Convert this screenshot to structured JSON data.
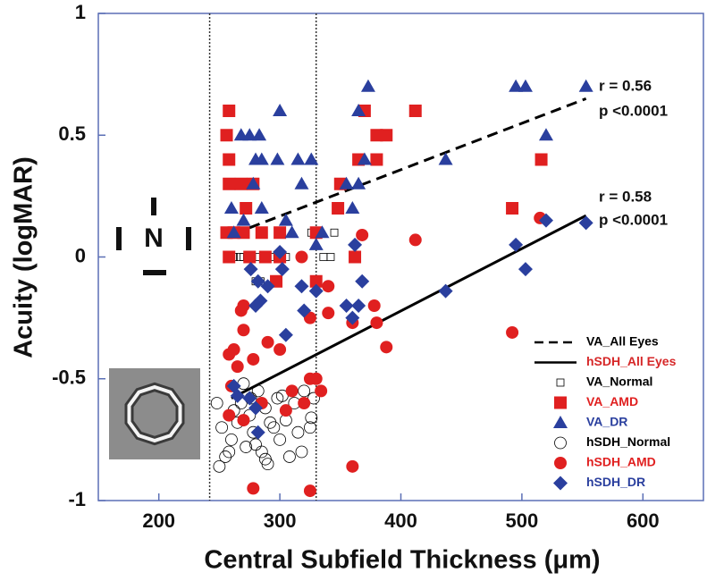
{
  "chart_data": {
    "type": "scatter",
    "x_label": "Central Subfield Thickness (μm)",
    "y_label": "Acuity (logMAR)",
    "xlim": [
      150,
      650
    ],
    "ylim": [
      -1,
      1
    ],
    "xticks": [
      200,
      300,
      400,
      500,
      600
    ],
    "yticks": [
      1,
      0.5,
      0,
      -0.5,
      -1
    ],
    "reference_lines_x": [
      242,
      330
    ],
    "orientation_label": "N",
    "annotations": [
      "r = 0.56",
      "p <0.0001",
      "r = 0.58",
      "p <0.0001"
    ],
    "series": [
      {
        "name": "VA_All Eyes",
        "color": "#000000",
        "marker": "line",
        "dash": true,
        "x": [
          275,
          553
        ],
        "values": [
          0.12,
          0.65
        ]
      },
      {
        "name": "hSDH_All Eyes",
        "color": "#d62728",
        "marker": "line",
        "dash": false,
        "line_color": "#000000",
        "x": [
          260,
          553
        ],
        "values": [
          -0.58,
          0.17
        ]
      },
      {
        "name": "VA_Normal",
        "color": "#000000",
        "marker": "square",
        "filled": false,
        "x": [
          262,
          267,
          270,
          273,
          277,
          282,
          287,
          292,
          300,
          305,
          318,
          336,
          342,
          280,
          284,
          326,
          345
        ],
        "values": [
          0,
          0,
          0,
          0,
          0,
          0,
          0,
          0,
          0,
          0,
          0,
          0,
          0,
          -0.1,
          -0.1,
          0.1,
          0.1
        ]
      },
      {
        "name": "VA_AMD",
        "color": "#e02020",
        "marker": "square",
        "filled": true,
        "x": [
          258,
          256,
          258,
          258,
          268,
          272,
          256,
          262,
          270,
          285,
          300,
          258,
          275,
          288,
          300,
          330,
          330,
          348,
          350,
          365,
          370,
          380,
          380,
          388,
          412,
          362,
          492,
          516,
          278,
          297
        ],
        "values": [
          0.6,
          0.5,
          0.4,
          0.3,
          0.3,
          0.2,
          0.1,
          0.1,
          0.1,
          0.1,
          0.1,
          0,
          0,
          0,
          0,
          0.1,
          -0.1,
          0.2,
          0.3,
          0.4,
          0.6,
          0.4,
          0.5,
          0.5,
          0.6,
          0,
          0.2,
          0.4,
          0.3,
          -0.1
        ]
      },
      {
        "name": "VA_DR",
        "color": "#2a3f9e",
        "marker": "triangle",
        "filled": true,
        "x": [
          260,
          262,
          268,
          275,
          280,
          283,
          278,
          285,
          300,
          298,
          310,
          315,
          318,
          326,
          335,
          355,
          360,
          365,
          370,
          365,
          373,
          437,
          495,
          503,
          520,
          553,
          330,
          270,
          285,
          305
        ],
        "values": [
          0.2,
          0.1,
          0.5,
          0.5,
          0.4,
          0.5,
          0.3,
          0.2,
          0.6,
          0.4,
          0.1,
          0.4,
          0.3,
          0.4,
          0.1,
          0.3,
          0.2,
          0.3,
          0.4,
          0.6,
          0.7,
          0.4,
          0.7,
          0.7,
          0.5,
          0.7,
          0.05,
          0.15,
          0.4,
          0.15
        ]
      },
      {
        "name": "hSDH_Normal",
        "color": "#000000",
        "marker": "circle",
        "filled": false,
        "x": [
          248,
          252,
          255,
          260,
          265,
          268,
          272,
          275,
          278,
          282,
          285,
          288,
          290,
          295,
          298,
          300,
          305,
          308,
          312,
          315,
          320,
          325,
          328,
          250,
          262,
          270,
          280,
          292,
          302,
          318,
          326,
          258,
          276,
          288
        ],
        "values": [
          -0.6,
          -0.7,
          -0.82,
          -0.75,
          -0.68,
          -0.6,
          -0.78,
          -0.65,
          -0.72,
          -0.55,
          -0.8,
          -0.62,
          -0.85,
          -0.7,
          -0.58,
          -0.75,
          -0.67,
          -0.82,
          -0.6,
          -0.72,
          -0.55,
          -0.7,
          -0.58,
          -0.86,
          -0.63,
          -0.52,
          -0.77,
          -0.68,
          -0.57,
          -0.8,
          -0.66,
          -0.8,
          -0.58,
          -0.83
        ]
      },
      {
        "name": "hSDH_AMD",
        "color": "#e02020",
        "marker": "circle",
        "filled": true,
        "x": [
          258,
          262,
          268,
          270,
          265,
          278,
          285,
          290,
          300,
          305,
          310,
          320,
          325,
          318,
          325,
          330,
          334,
          340,
          340,
          360,
          368,
          378,
          380,
          388,
          412,
          492,
          515,
          270,
          278,
          325,
          360,
          258,
          270,
          260
        ],
        "values": [
          -0.4,
          -0.38,
          -0.22,
          -0.3,
          -0.45,
          -0.42,
          -0.6,
          -0.35,
          -0.38,
          -0.63,
          -0.55,
          -0.6,
          -0.25,
          0,
          -0.5,
          -0.5,
          -0.55,
          -0.12,
          -0.23,
          -0.27,
          0.09,
          -0.2,
          -0.27,
          -0.37,
          0.07,
          -0.31,
          0.16,
          -0.67,
          -0.95,
          -0.96,
          -0.86,
          -0.65,
          -0.2,
          -0.53
        ]
      },
      {
        "name": "hSDH_DR",
        "color": "#2a3f9e",
        "marker": "diamond",
        "filled": true,
        "x": [
          262,
          265,
          275,
          280,
          282,
          284,
          280,
          282,
          290,
          300,
          302,
          305,
          320,
          318,
          330,
          355,
          360,
          362,
          368,
          365,
          437,
          495,
          503,
          520,
          553,
          276
        ],
        "values": [
          -0.53,
          -0.57,
          -0.58,
          -0.2,
          -0.1,
          -0.18,
          -0.62,
          -0.72,
          -0.12,
          0.02,
          -0.05,
          -0.32,
          -0.22,
          -0.12,
          -0.14,
          -0.2,
          -0.25,
          0.05,
          -0.1,
          -0.2,
          -0.14,
          0.05,
          -0.05,
          0.15,
          0.14,
          -0.05
        ]
      }
    ]
  }
}
